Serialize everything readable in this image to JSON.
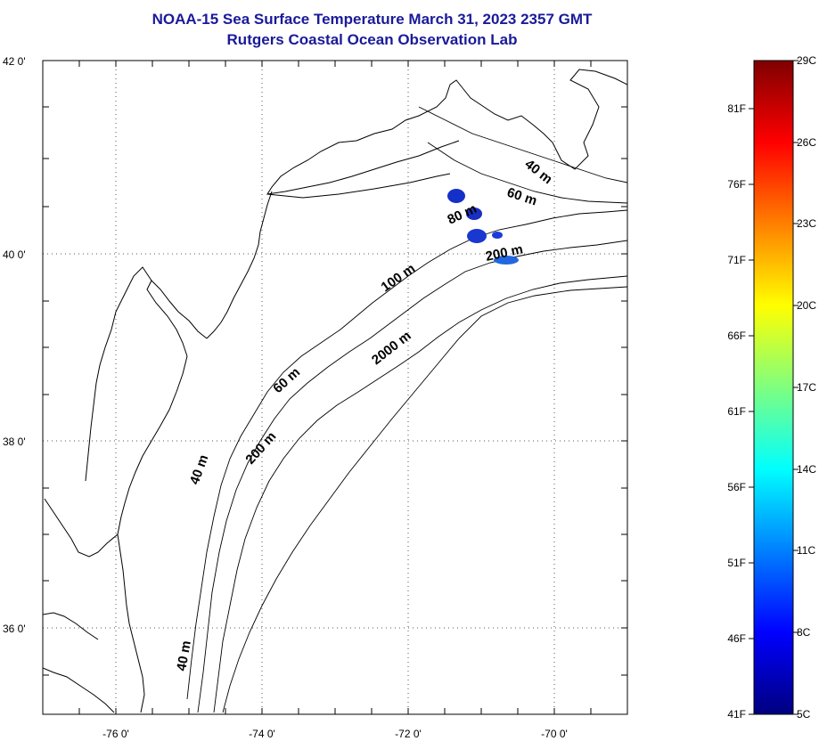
{
  "title": {
    "line1": "NOAA-15 Sea Surface Temperature March 31, 2023 2357 GMT",
    "line2": "Rutgers Coastal Ocean Observation Lab"
  },
  "map": {
    "lat_labels": [
      "42 0'",
      "40 0'",
      "38 0'",
      "36 0'"
    ],
    "lon_labels": [
      "-76 0'",
      "-74 0'",
      "-72 0'",
      "-70 0'"
    ],
    "lat_range": [
      35,
      42
    ],
    "lon_range": [
      -77,
      -69
    ],
    "contour_labels": [
      "40 m",
      "60 m",
      "80 m",
      "200 m",
      "100 m",
      "2000 m",
      "60 m",
      "200 m",
      "40 m",
      "40 m"
    ],
    "land_color": "#ffffff",
    "coastline_color": "#000000",
    "grid": "dotted"
  },
  "colorbar": {
    "celsius_labels": [
      "29C",
      "26C",
      "23C",
      "20C",
      "17C",
      "14C",
      "11C",
      "8C",
      "5C"
    ],
    "fahrenheit_labels": [
      "81F",
      "76F",
      "71F",
      "66F",
      "61F",
      "56F",
      "51F",
      "46F",
      "41F"
    ],
    "celsius_range": [
      5,
      29
    ],
    "colormap": "jet"
  }
}
